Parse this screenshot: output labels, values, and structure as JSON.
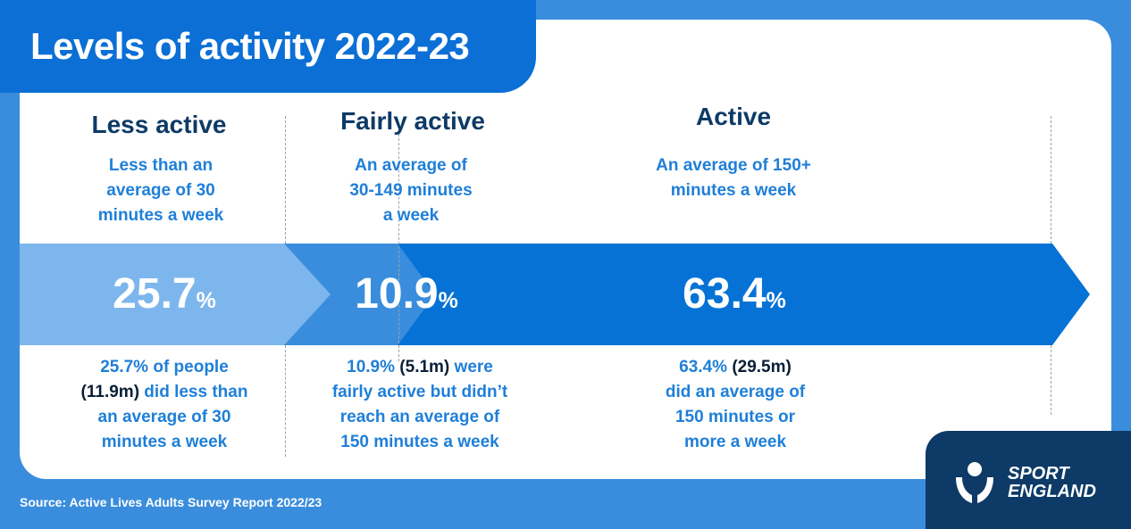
{
  "title": "Levels of activity 2022-23",
  "source": "Source: Active Lives Adults Survey Report 2022/23",
  "logo": {
    "line1": "SPORT",
    "line2": "ENGLAND"
  },
  "colors": {
    "background": "#3a8ddc",
    "title_tab": "#0b6fd6",
    "less_active": "#7db6ec",
    "fairly_active": "#3a8ddc",
    "active": "#0672d5",
    "heading_text": "#0e3a66",
    "desc_text": "#1f7fd8",
    "logo_bg": "#0d3a66"
  },
  "categories": [
    {
      "title": "Less active",
      "description": [
        "Less than an",
        "average of 30",
        "minutes a week"
      ],
      "value": "25.7",
      "sign": "%",
      "note": [
        [
          {
            "t": "25.7% of people",
            "hl": false
          }
        ],
        [
          {
            "t": "(11.9m)",
            "hl": true
          },
          {
            "t": " did less than",
            "hl": false
          }
        ],
        [
          {
            "t": "an average of 30",
            "hl": false
          }
        ],
        [
          {
            "t": "minutes a week",
            "hl": false
          }
        ]
      ]
    },
    {
      "title": "Fairly active",
      "description": [
        "An average of",
        "30-149 minutes",
        "a week"
      ],
      "value": "10.9",
      "sign": "%",
      "note": [
        [
          {
            "t": "10.9% ",
            "hl": false
          },
          {
            "t": "(5.1m)",
            "hl": true
          },
          {
            "t": " were",
            "hl": false
          }
        ],
        [
          {
            "t": "fairly active but didn’t",
            "hl": false
          }
        ],
        [
          {
            "t": "reach an average of",
            "hl": false
          }
        ],
        [
          {
            "t": "150 minutes a week",
            "hl": false
          }
        ]
      ]
    },
    {
      "title": "Active",
      "description": [
        "An average of 150+",
        "minutes a week"
      ],
      "value": "63.4",
      "sign": "%",
      "note": [
        [
          {
            "t": "63.4% ",
            "hl": false
          },
          {
            "t": "(29.5m)",
            "hl": true
          }
        ],
        [
          {
            "t": "did an average of",
            "hl": false
          }
        ],
        [
          {
            "t": "150 minutes or",
            "hl": false
          }
        ],
        [
          {
            "t": "more a week",
            "hl": false
          }
        ]
      ]
    }
  ],
  "chart_data": {
    "type": "bar",
    "categories": [
      "Less active",
      "Fairly active",
      "Active"
    ],
    "values": [
      25.7,
      10.9,
      63.4
    ],
    "title": "Levels of activity 2022-23",
    "xlabel": "",
    "ylabel": ""
  }
}
